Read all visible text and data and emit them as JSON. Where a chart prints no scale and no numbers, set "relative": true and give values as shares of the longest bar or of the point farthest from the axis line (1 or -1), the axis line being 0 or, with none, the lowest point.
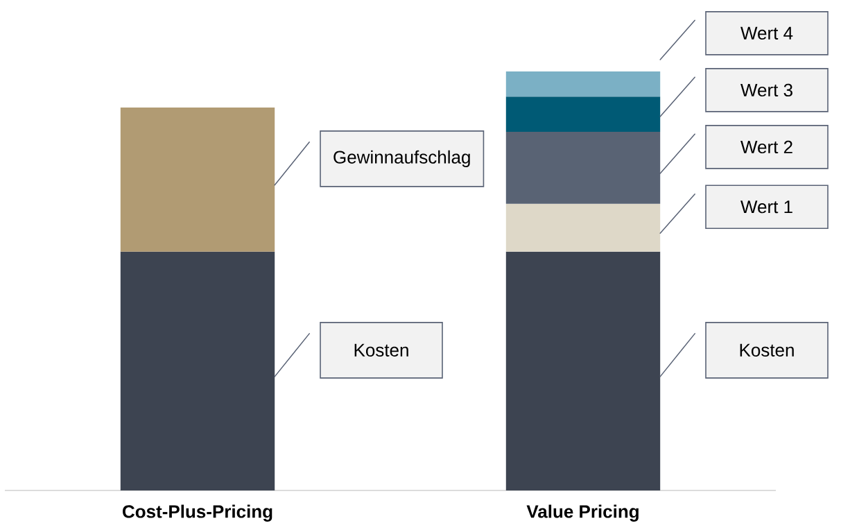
{
  "chart_data": {
    "type": "bar",
    "stacked": true,
    "relative": true,
    "categories": [
      "Cost-Plus-Pricing",
      "Value Pricing"
    ],
    "series": [
      {
        "color": "#3d4451",
        "values": [
          0.57,
          0.57
        ]
      },
      {
        "color": "#b19b73",
        "values": [
          0.344,
          null
        ]
      },
      {
        "color": "#ded8c8",
        "values": [
          null,
          0.114
        ]
      },
      {
        "color": "#596374",
        "values": [
          null,
          0.172
        ]
      },
      {
        "color": "#005a75",
        "values": [
          null,
          0.084
        ]
      },
      {
        "color": "#7bb0c5",
        "values": [
          null,
          0.06
        ]
      }
    ],
    "annotations": [
      "Kosten",
      "Gewinnaufschlag",
      "Kosten",
      "Wert 1",
      "Wert 2",
      "Wert 3",
      "Wert 4"
    ]
  }
}
